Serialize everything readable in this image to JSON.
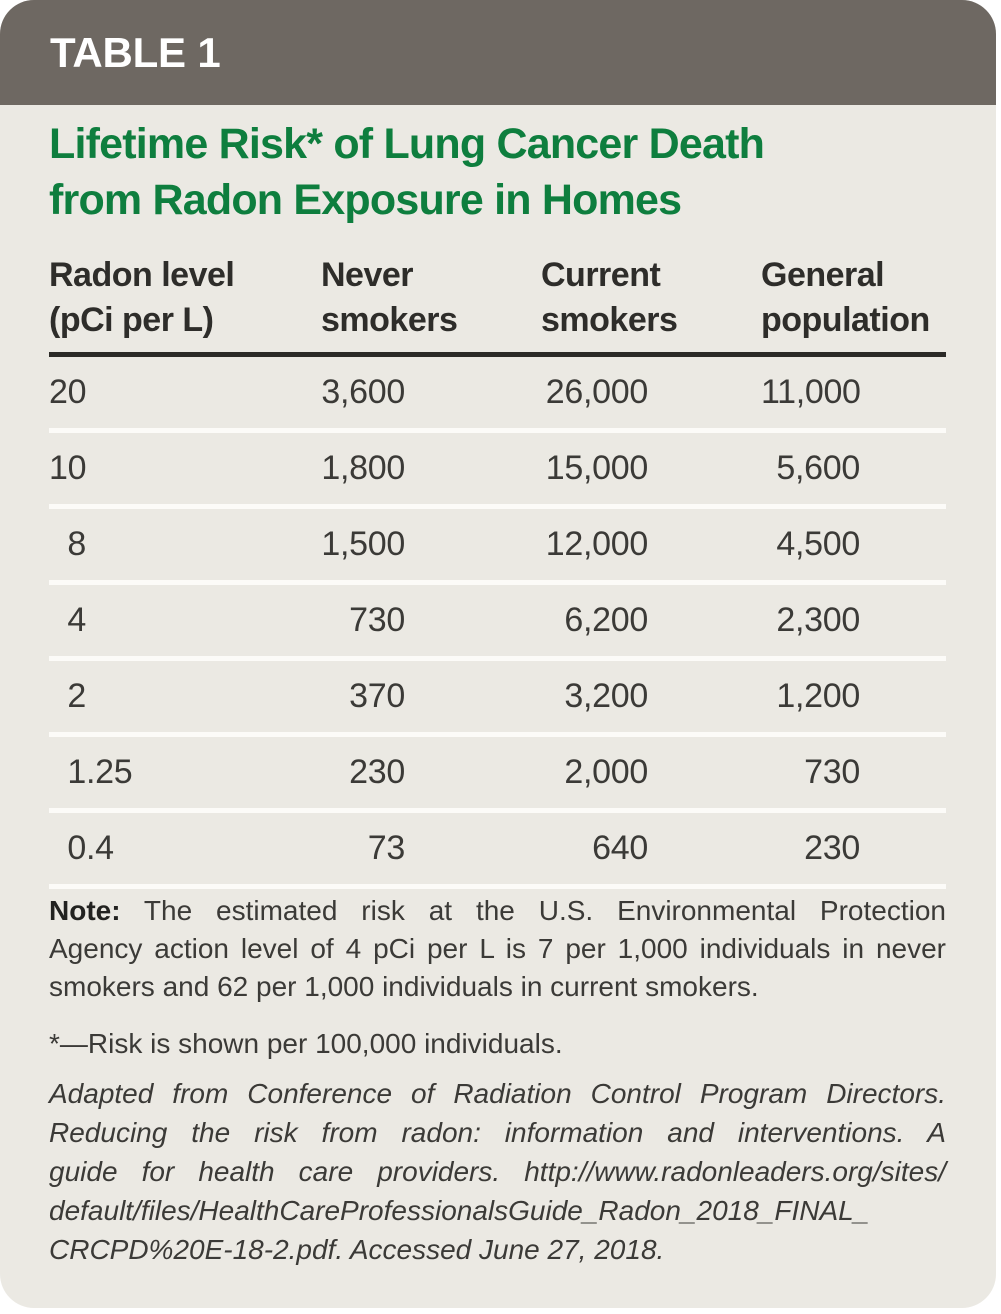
{
  "header": {
    "label": "TABLE 1"
  },
  "title": {
    "lines": [
      "Lifetime Risk* of Lung Cancer Death",
      "from Radon Exposure in Homes"
    ]
  },
  "table": {
    "columns": [
      {
        "id": "radon-level",
        "label_lines": [
          "Radon level",
          "(pCi per L)"
        ]
      },
      {
        "id": "never-smokers",
        "label_lines": [
          "Never",
          "smokers"
        ]
      },
      {
        "id": "current-smokers",
        "label_lines": [
          "Current",
          "smokers"
        ]
      },
      {
        "id": "general-population",
        "label_lines": [
          "General",
          "population"
        ]
      }
    ],
    "rows": [
      [
        "20",
        "3,600",
        "26,000",
        "11,000"
      ],
      [
        "10",
        "1,800",
        "15,000",
        "5,600"
      ],
      [
        "8",
        "1,500",
        "12,000",
        "4,500"
      ],
      [
        "4",
        "730",
        "6,200",
        "2,300"
      ],
      [
        "2",
        "370",
        "3,200",
        "1,200"
      ],
      [
        "1.25",
        "230",
        "2,000",
        "730"
      ],
      [
        "0.4",
        "73",
        "640",
        "230"
      ]
    ]
  },
  "note": {
    "label": "Note:",
    "lines": [
      "The estimated risk at the U.S. Environmental Protection",
      "Agency action level of 4 pCi per L is 7 per 1,000 individuals in never",
      "smokers and 62 per 1,000 individuals in current smokers."
    ]
  },
  "footnote": "*—Risk is shown per 100,000 individuals.",
  "source": {
    "lines": [
      "Adapted from Conference of Radiation Control Program Directors.",
      "Reducing the risk from radon: information and interventions. A",
      "guide for health care providers. http://www.radonleaders.org/sites/",
      "default/files/HealthCareProfessionalsGuide_Radon_2018_FINAL_",
      "CRCPD%20E-18-2.pdf. Accessed June 27, 2018."
    ]
  },
  "colors": {
    "header_bar": "#6e6862",
    "body_bg": "#ebe9e3",
    "title_green": "#0e7e3e",
    "rule": "#2b2a27",
    "separator": "#fcfbf8",
    "text": "#3b3a37"
  }
}
